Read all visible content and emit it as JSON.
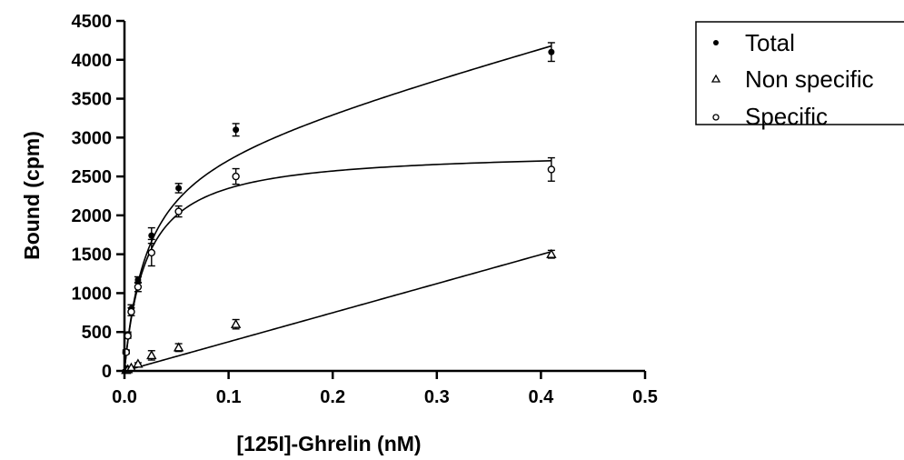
{
  "chart_data": {
    "type": "scatter",
    "title": "",
    "xlabel": "[125I]-Ghrelin (nM)",
    "ylabel": "Bound (cpm)",
    "xlim": [
      0,
      0.5
    ],
    "ylim": [
      0,
      4500
    ],
    "xticks": [
      0.0,
      0.1,
      0.2,
      0.3,
      0.4,
      0.5
    ],
    "xtick_labels": [
      "0.0",
      "0.1",
      "0.2",
      "0.3",
      "0.4",
      "0.5"
    ],
    "yticks": [
      0,
      500,
      1000,
      1500,
      2000,
      2500,
      3000,
      3500,
      4000,
      4500
    ],
    "ytick_labels": [
      "0",
      "500",
      "1000",
      "1500",
      "2000",
      "2500",
      "3000",
      "3500",
      "4000",
      "4500"
    ],
    "grid": false,
    "legend_position": "top-right, outside plot",
    "series": [
      {
        "name": "Total",
        "marker": "filled-circle",
        "x": [
          0.0016,
          0.0032,
          0.0065,
          0.013,
          0.026,
          0.052,
          0.107,
          0.41
        ],
        "y": [
          250,
          470,
          800,
          1170,
          1740,
          2350,
          3100,
          4100
        ],
        "error": [
          20,
          30,
          50,
          40,
          100,
          60,
          80,
          120
        ],
        "fit": {
          "model": "one-site binding + nonspecific",
          "bmax": 2840,
          "kd": 0.021,
          "ns_slope": 3600
        }
      },
      {
        "name": "Non specific",
        "marker": "open-triangle",
        "x": [
          0.0016,
          0.0032,
          0.0065,
          0.013,
          0.026,
          0.052,
          0.107,
          0.41
        ],
        "y": [
          10,
          20,
          40,
          90,
          200,
          300,
          600,
          1500
        ],
        "error": [
          5,
          8,
          10,
          15,
          60,
          50,
          60,
          50
        ],
        "fit": {
          "model": "linear",
          "slope": 3740,
          "intercept": 0
        }
      },
      {
        "name": "Specific",
        "marker": "open-circle",
        "x": [
          0.0016,
          0.0032,
          0.0065,
          0.013,
          0.026,
          0.052,
          0.107,
          0.41
        ],
        "y": [
          240,
          450,
          760,
          1080,
          1520,
          2050,
          2500,
          2590
        ],
        "error": [
          20,
          30,
          50,
          60,
          170,
          70,
          100,
          150
        ],
        "fit": {
          "model": "one-site binding",
          "bmax": 2840,
          "kd": 0.021
        }
      }
    ]
  }
}
